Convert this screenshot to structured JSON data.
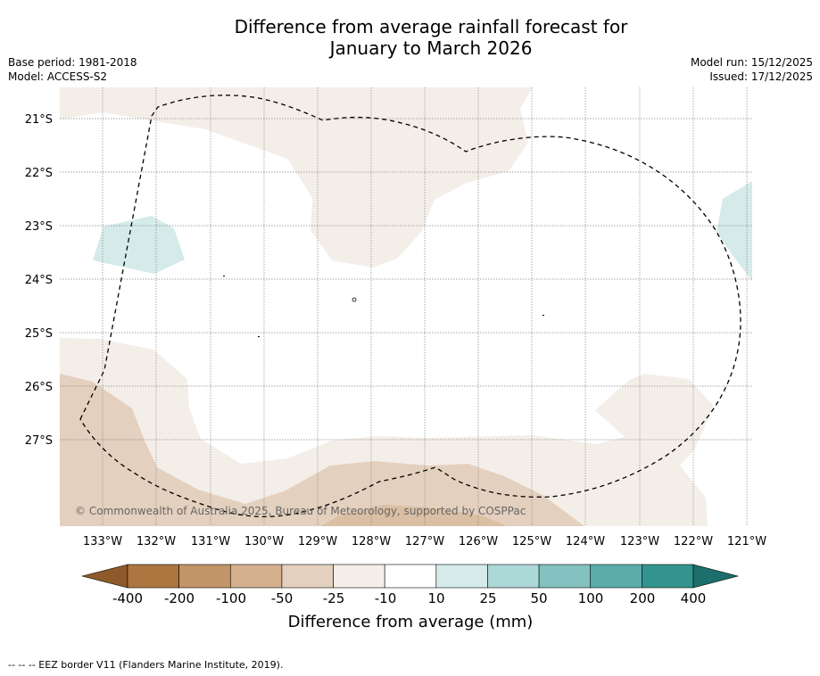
{
  "title_line1": "Difference from average rainfall forecast for",
  "title_line2": "January to March 2026",
  "base_period": "Base period: 1981-2018",
  "model": "Model: ACCESS-S2",
  "model_run": "Model run: 15/12/2025",
  "issued": "Issued: 17/12/2025",
  "copyright": "© Commonwealth of Australia 2025, Bureau of Meteorology, supported by COSPPac",
  "footer": "--  --  -- EEZ border V11 (Flanders Marine Institute, 2019).",
  "lat_labels": [
    "21°S",
    "22°S",
    "23°S",
    "24°S",
    "25°S",
    "26°S",
    "27°S"
  ],
  "lon_labels": [
    "133°W",
    "132°W",
    "131°W",
    "130°W",
    "129°W",
    "128°W",
    "127°W",
    "126°W",
    "125°W",
    "124°W",
    "123°W",
    "122°W",
    "121°W"
  ],
  "colorbar": {
    "title": "Difference from average (mm)",
    "tick_labels": [
      "-400",
      "-200",
      "-100",
      "-50",
      "-25",
      "-10",
      "10",
      "25",
      "50",
      "100",
      "200",
      "400"
    ],
    "colors": [
      "#8f5a2a",
      "#ad7640",
      "#c39569",
      "#d4b08e",
      "#e4d0be",
      "#f4eee9",
      "#ffffff",
      "#d5ebea",
      "#acd8d7",
      "#82c2c0",
      "#5aadab",
      "#33948f",
      "#1c6f6c"
    ]
  },
  "colors": {
    "dry_light": "#f4eee9",
    "dry_mid": "#e4d0be",
    "dry_strong": "#d4b08e",
    "wet_light": "#d5ebea",
    "grid": "#888888",
    "eez": "#000000"
  }
}
